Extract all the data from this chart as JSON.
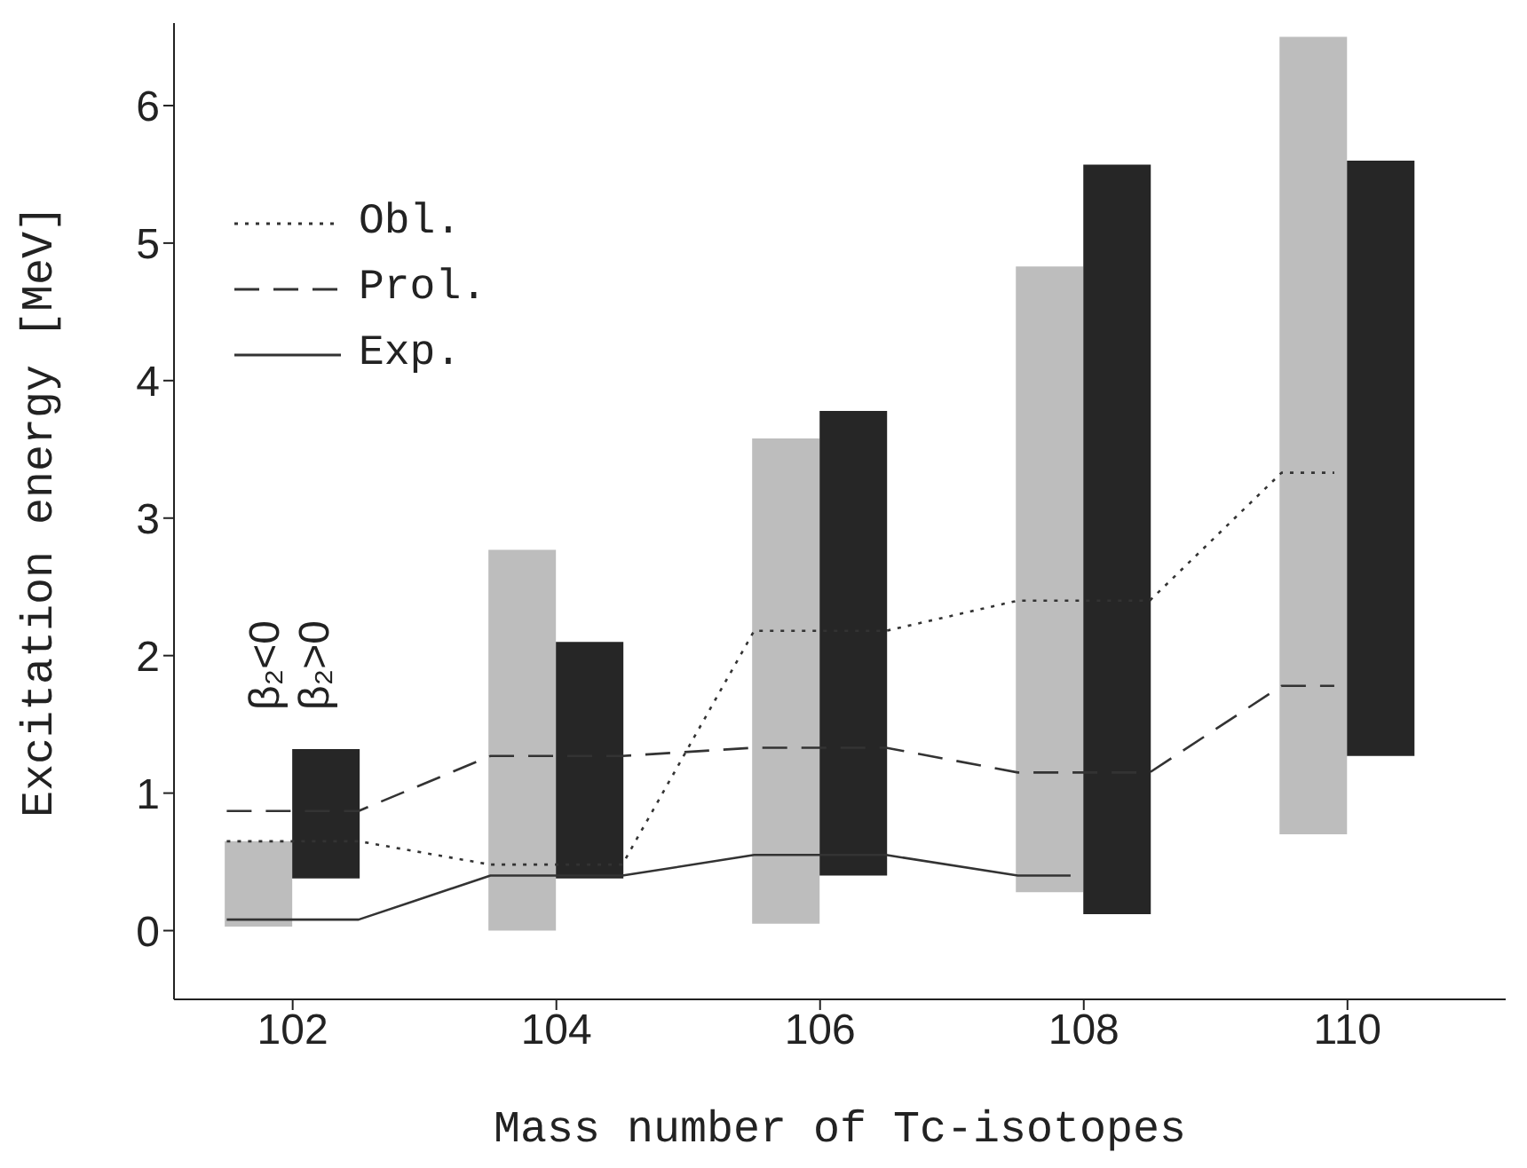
{
  "chart_data": {
    "type": "bar",
    "xlabel": "Mass number of Tc-isotopes",
    "ylabel": "Excitation energy [MeV]",
    "x": [
      102,
      104,
      106,
      108,
      110
    ],
    "xlim": [
      101.1,
      111.2
    ],
    "xticks": [
      102,
      104,
      106,
      108,
      110
    ],
    "ylim": [
      -0.5,
      6.6
    ],
    "yticks": [
      0,
      1,
      2,
      3,
      4,
      5,
      6
    ],
    "grid": false,
    "legend": "top left",
    "annotations": [
      "β₂<0",
      "β₂>0"
    ],
    "series": [
      {
        "color": "#bdbdbd",
        "base": [
          0.03,
          0,
          0.05,
          0.28,
          0.7
        ],
        "values": [
          0.62,
          2.77,
          3.53,
          4.55,
          5.8
        ]
      },
      {
        "color": "#262626",
        "base": [
          0.38,
          0.38,
          0.4,
          0.12,
          1.27
        ],
        "values": [
          0.94,
          1.72,
          3.38,
          5.45,
          4.33
        ]
      },
      {
        "type": "line",
        "name": "Obl.",
        "color": "#333333",
        "line_style": "dotted",
        "x": [
          101.5,
          102.5,
          103.5,
          104.5,
          105.5,
          106.5,
          107.5,
          108.5,
          109.5,
          109.9
        ],
        "values": [
          0.65,
          0.65,
          0.48,
          0.48,
          2.18,
          2.18,
          2.4,
          2.4,
          3.33,
          3.33
        ]
      },
      {
        "type": "line",
        "name": "Prol.",
        "color": "#333333",
        "line_style": "dashed",
        "x": [
          101.5,
          102.5,
          103.5,
          104.5,
          105.5,
          106.5,
          107.5,
          108.5,
          109.5,
          109.9
        ],
        "values": [
          0.87,
          0.87,
          1.27,
          1.27,
          1.33,
          1.33,
          1.15,
          1.15,
          1.78,
          1.78
        ]
      },
      {
        "type": "line",
        "name": "Exp.",
        "color": "#333333",
        "line_style": "solid",
        "x": [
          101.5,
          102.5,
          103.5,
          104.5,
          105.5,
          106.5,
          107.5,
          107.9
        ],
        "values": [
          0.08,
          0.08,
          0.4,
          0.4,
          0.55,
          0.55,
          0.4,
          0.4
        ]
      }
    ]
  }
}
